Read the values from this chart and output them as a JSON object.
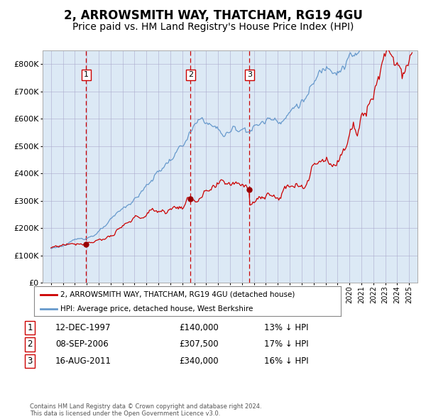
{
  "title": "2, ARROWSMITH WAY, THATCHAM, RG19 4GU",
  "subtitle": "Price paid vs. HM Land Registry's House Price Index (HPI)",
  "background_color": "#ffffff",
  "plot_background": "#dce9f5",
  "legend1": "2, ARROWSMITH WAY, THATCHAM, RG19 4GU (detached house)",
  "legend2": "HPI: Average price, detached house, West Berkshire",
  "footer": "Contains HM Land Registry data © Crown copyright and database right 2024.\nThis data is licensed under the Open Government Licence v3.0.",
  "transactions": [
    {
      "num": 1,
      "date": "12-DEC-1997",
      "price": 140000,
      "hpi_pct": "13% ↓ HPI"
    },
    {
      "num": 2,
      "date": "08-SEP-2006",
      "price": 307500,
      "hpi_pct": "17% ↓ HPI"
    },
    {
      "num": 3,
      "date": "16-AUG-2011",
      "price": 340000,
      "hpi_pct": "16% ↓ HPI"
    }
  ],
  "transaction_dates_decimal": [
    1997.95,
    2006.69,
    2011.62
  ],
  "ylim": [
    0,
    850000
  ],
  "yticks": [
    0,
    100000,
    200000,
    300000,
    400000,
    500000,
    600000,
    700000,
    800000
  ],
  "red_line_color": "#cc0000",
  "blue_line_color": "#6699cc",
  "dashed_line_color": "#cc0000",
  "marker_color": "#990000",
  "box_color": "#cc0000",
  "grid_color": "#aaaacc",
  "title_fontsize": 12,
  "subtitle_fontsize": 10
}
